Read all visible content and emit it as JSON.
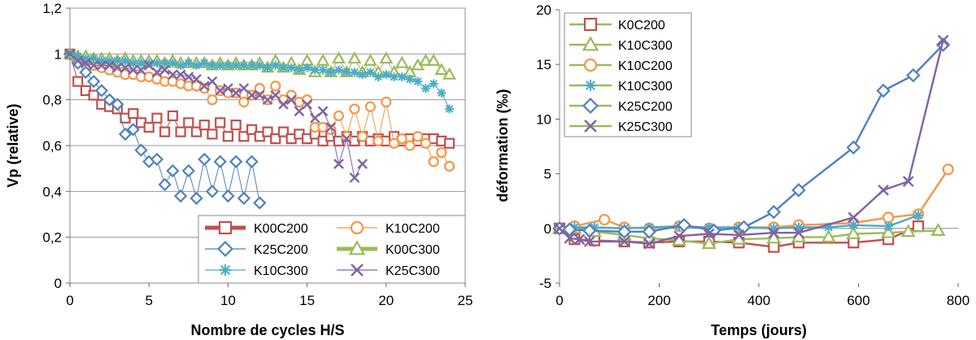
{
  "chart_data": [
    {
      "type": "line",
      "title": "",
      "xlabel": "Nombre de cycles H/S",
      "ylabel": "Vp (relative)",
      "xlim": [
        0,
        25
      ],
      "ylim": [
        0,
        1.2
      ],
      "xticks": [
        "0",
        "5",
        "10",
        "15",
        "20",
        "25"
      ],
      "yticks": [
        "0",
        "0,2",
        "0,4",
        "0,6",
        "0,8",
        "1",
        "1,2"
      ],
      "legend": "bottom-right",
      "series": [
        {
          "name": "K00C200",
          "color": "#c0504d",
          "marker": "square",
          "x": [
            0,
            0.5,
            1,
            1.5,
            2,
            2.5,
            3,
            3.5,
            4,
            4.5,
            5,
            5.5,
            6,
            6.5,
            7,
            7.5,
            8,
            8.5,
            9,
            9.5,
            10,
            10.5,
            11,
            11.5,
            12,
            12.5,
            13,
            13.5,
            14,
            14.5,
            15,
            15.5,
            16,
            16.5,
            17,
            17.5,
            18,
            18.5,
            19,
            19.5,
            20,
            20.5,
            21,
            21.5,
            22,
            22.5,
            23,
            23.5,
            24
          ],
          "y": [
            1,
            0.88,
            0.84,
            0.82,
            0.78,
            0.77,
            0.76,
            0.72,
            0.74,
            0.7,
            0.68,
            0.72,
            0.66,
            0.73,
            0.66,
            0.7,
            0.66,
            0.69,
            0.65,
            0.7,
            0.64,
            0.69,
            0.64,
            0.67,
            0.64,
            0.66,
            0.63,
            0.66,
            0.63,
            0.65,
            0.63,
            0.65,
            0.62,
            0.64,
            0.62,
            0.64,
            0.62,
            0.64,
            0.62,
            0.63,
            0.62,
            0.64,
            0.62,
            0.63,
            0.62,
            0.63,
            0.63,
            0.62,
            0.61
          ]
        },
        {
          "name": "K10C200",
          "color": "#f79646",
          "marker": "circle",
          "x": [
            0,
            0.5,
            1,
            1.5,
            2,
            2.5,
            3,
            3.5,
            4,
            4.5,
            5,
            5.5,
            6,
            6.5,
            7,
            7.5,
            8,
            8.5,
            9,
            9.5,
            10,
            10.5,
            11,
            11.5,
            12,
            12.5,
            13,
            13.5,
            14,
            14.5,
            15,
            15.5,
            16,
            16.5,
            17,
            17.5,
            18,
            18.5,
            19,
            19.5,
            20,
            20.5,
            21,
            21.5,
            22,
            22.5,
            23,
            23.5,
            24
          ],
          "y": [
            1,
            0.98,
            0.97,
            0.95,
            0.94,
            0.93,
            0.92,
            0.91,
            0.91,
            0.9,
            0.9,
            0.89,
            0.88,
            0.88,
            0.87,
            0.86,
            0.86,
            0.85,
            0.8,
            0.84,
            0.83,
            0.83,
            0.79,
            0.82,
            0.85,
            0.8,
            0.86,
            0.8,
            0.82,
            0.79,
            0.8,
            0.68,
            0.68,
            0.67,
            0.73,
            0.64,
            0.76,
            0.64,
            0.77,
            0.62,
            0.79,
            0.61,
            0.63,
            0.6,
            0.64,
            0.61,
            0.53,
            0.57,
            0.51
          ]
        },
        {
          "name": "K25C200",
          "color": "#4f81bd",
          "marker": "diamond",
          "x": [
            0,
            0.5,
            1,
            1.5,
            2,
            2.5,
            3,
            3.5,
            4,
            4.5,
            5,
            5.5,
            6,
            6.5,
            7,
            7.5,
            8,
            8.5,
            9,
            9.5,
            10,
            10.5,
            11,
            11.5,
            12
          ],
          "y": [
            1,
            0.96,
            0.92,
            0.88,
            0.84,
            0.8,
            0.78,
            0.65,
            0.67,
            0.58,
            0.53,
            0.54,
            0.43,
            0.49,
            0.38,
            0.49,
            0.37,
            0.54,
            0.4,
            0.53,
            0.38,
            0.53,
            0.37,
            0.53,
            0.35
          ]
        },
        {
          "name": "K00C300",
          "color": "#9bbb59",
          "marker": "triangle",
          "x": [
            0,
            0.5,
            1,
            1.5,
            2,
            2.5,
            3,
            3.5,
            4,
            4.5,
            5,
            5.5,
            6,
            6.5,
            7,
            7.5,
            8,
            8.5,
            9,
            9.5,
            10,
            10.5,
            11,
            11.5,
            12,
            12.5,
            13,
            13.5,
            14,
            14.5,
            15,
            15.5,
            16,
            16.5,
            17,
            17.5,
            18,
            18.5,
            19,
            19.5,
            20,
            20.5,
            21,
            21.5,
            22,
            22.5,
            23,
            23.5,
            24
          ],
          "y": [
            1,
            0.99,
            0.99,
            0.98,
            0.98,
            0.98,
            0.97,
            0.98,
            0.97,
            0.97,
            0.97,
            0.97,
            0.96,
            0.97,
            0.96,
            0.96,
            0.96,
            0.96,
            0.95,
            0.96,
            0.95,
            0.96,
            0.95,
            0.95,
            0.96,
            0.94,
            0.97,
            0.94,
            0.96,
            0.93,
            0.97,
            0.92,
            0.97,
            0.92,
            0.98,
            0.92,
            0.98,
            0.92,
            0.97,
            0.92,
            0.98,
            0.92,
            0.96,
            0.92,
            0.95,
            0.97,
            0.97,
            0.93,
            0.91
          ]
        },
        {
          "name": "K10C300",
          "color": "#4bacc6",
          "marker": "star",
          "x": [
            0,
            0.5,
            1,
            1.5,
            2,
            2.5,
            3,
            3.5,
            4,
            4.5,
            5,
            5.5,
            6,
            6.5,
            7,
            7.5,
            8,
            8.5,
            9,
            9.5,
            10,
            10.5,
            11,
            11.5,
            12,
            12.5,
            13,
            13.5,
            14,
            14.5,
            15,
            15.5,
            16,
            16.5,
            17,
            17.5,
            18,
            18.5,
            19,
            19.5,
            20,
            20.5,
            21,
            21.5,
            22,
            22.5,
            23,
            23.5,
            24
          ],
          "y": [
            1,
            0.99,
            0.98,
            0.98,
            0.97,
            0.97,
            0.97,
            0.97,
            0.96,
            0.96,
            0.96,
            0.96,
            0.96,
            0.96,
            0.95,
            0.96,
            0.95,
            0.96,
            0.95,
            0.95,
            0.95,
            0.95,
            0.95,
            0.95,
            0.95,
            0.94,
            0.95,
            0.94,
            0.94,
            0.93,
            0.94,
            0.93,
            0.93,
            0.92,
            0.93,
            0.92,
            0.92,
            0.91,
            0.92,
            0.9,
            0.91,
            0.9,
            0.9,
            0.89,
            0.88,
            0.85,
            0.87,
            0.83,
            0.76
          ]
        },
        {
          "name": "K25C300",
          "color": "#8064a2",
          "marker": "x",
          "x": [
            0,
            0.5,
            1,
            1.5,
            2,
            2.5,
            3,
            3.5,
            4,
            4.5,
            5,
            5.5,
            6,
            6.5,
            7,
            7.5,
            8,
            8.5,
            9,
            9.5,
            10,
            10.5,
            11,
            11.5,
            12,
            12.5,
            13,
            13.5,
            14,
            14.5,
            15,
            15.5,
            16,
            16.5,
            17,
            17.5,
            18,
            18.5
          ],
          "y": [
            1,
            0.97,
            0.96,
            0.95,
            0.95,
            0.95,
            0.94,
            0.94,
            0.93,
            0.93,
            0.95,
            0.92,
            0.93,
            0.91,
            0.91,
            0.9,
            0.89,
            0.86,
            0.88,
            0.84,
            0.85,
            0.83,
            0.85,
            0.82,
            0.82,
            0.8,
            0.82,
            0.78,
            0.8,
            0.75,
            0.78,
            0.72,
            0.75,
            0.68,
            0.52,
            0.63,
            0.46,
            0.52
          ]
        }
      ]
    },
    {
      "type": "line",
      "title": "",
      "xlabel": "Temps (jours)",
      "ylabel": "déformation (‰)",
      "xlim": [
        0,
        800
      ],
      "ylim": [
        -5,
        20
      ],
      "xticks": [
        "0",
        "200",
        "400",
        "600",
        "800"
      ],
      "yticks": [
        "-5",
        "0",
        "5",
        "10",
        "15",
        "20"
      ],
      "legend": "top-left",
      "series": [
        {
          "name": "K0C200",
          "color": "#c0504d",
          "marker": "square",
          "x": [
            0,
            30,
            70,
            130,
            180,
            240,
            300,
            360,
            430,
            480,
            590,
            660,
            720
          ],
          "y": [
            0,
            -1,
            -1.1,
            -1.2,
            -1.3,
            -1.2,
            -1.2,
            -1.3,
            -1.7,
            -1.3,
            -1.3,
            -1,
            0.2
          ]
        },
        {
          "name": "K10C300",
          "color": "#9bbb59",
          "marker": "triangle",
          "x": [
            0,
            30,
            70,
            130,
            180,
            240,
            300,
            360,
            430,
            480,
            540,
            590,
            660,
            700,
            760
          ],
          "y": [
            0,
            0,
            -0.3,
            -0.6,
            -0.9,
            -1.1,
            -1.4,
            -1,
            -0.9,
            -0.8,
            -0.8,
            -0.5,
            -0.4,
            -0.3,
            -0.2
          ]
        },
        {
          "name": "K10C200",
          "color": "#f79646",
          "marker": "circle",
          "x": [
            0,
            30,
            90,
            130,
            180,
            240,
            300,
            360,
            430,
            480,
            590,
            660,
            720,
            780
          ],
          "y": [
            0,
            0.2,
            0.8,
            0.1,
            0,
            0.2,
            0,
            0.1,
            0.1,
            0.3,
            0.5,
            1,
            1.3,
            5.4
          ]
        },
        {
          "name": "K10C300",
          "color": "#4bacc6",
          "marker": "star",
          "x": [
            0,
            30,
            70,
            130,
            180,
            240,
            300,
            360,
            430,
            480,
            540,
            590,
            660,
            720
          ],
          "y": [
            0,
            0.1,
            0.1,
            0,
            0.1,
            0.2,
            0.1,
            0.1,
            0,
            0.1,
            0.1,
            0.3,
            0.2,
            1.2
          ]
        },
        {
          "name": "K25C200",
          "color": "#4f81bd",
          "marker": "diamond",
          "x": [
            0,
            20,
            60,
            130,
            180,
            250,
            310,
            370,
            430,
            480,
            590,
            650,
            710,
            770
          ],
          "y": [
            0,
            -0.1,
            -0.2,
            -0.3,
            -0.3,
            0.3,
            -0.2,
            0.1,
            1.5,
            3.5,
            7.4,
            12.6,
            14,
            16.8
          ]
        },
        {
          "name": "K25C300",
          "color": "#8064a2",
          "marker": "x",
          "x": [
            0,
            20,
            40,
            60,
            130,
            180,
            240,
            300,
            360,
            430,
            480,
            590,
            650,
            700,
            770
          ],
          "y": [
            0,
            -0.9,
            -1,
            -1.2,
            -1.2,
            -1.4,
            -0.7,
            -0.5,
            -0.6,
            -0.4,
            -0.4,
            1,
            3.5,
            4.3,
            17.2
          ]
        }
      ]
    }
  ]
}
